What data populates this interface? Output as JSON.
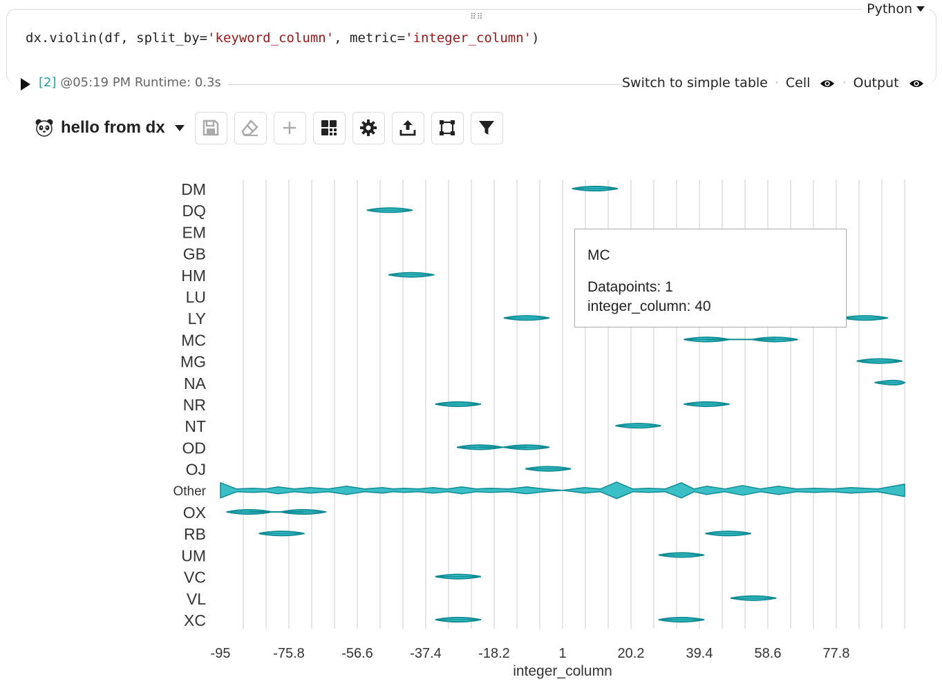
{
  "cell": {
    "language": "Python",
    "code_prefix": "dx.violin(df, split_by=",
    "code_arg1": "'keyword_column'",
    "code_mid": ", metric=",
    "code_arg2": "'integer_column'",
    "code_suffix": ")",
    "exec_count": "[2]",
    "exec_info": " @05:19 PM Runtime: 0.3s",
    "switch_label": "Switch to simple table",
    "cell_label": "Cell",
    "output_label": "Output"
  },
  "toolbar": {
    "title": "hello from dx",
    "buttons": [
      "save-icon",
      "eraser-icon",
      "plus-icon",
      "grid-icon",
      "gear-icon",
      "upload-icon",
      "select-icon",
      "filter-icon"
    ]
  },
  "tooltip": {
    "title": "MC",
    "line1": "Datapoints: 1",
    "line2": "integer_column: 40"
  },
  "colors": {
    "violin_fill": "#3bbfc7",
    "violin_stroke": "#0e8a93",
    "accent": "#1fa0a6"
  },
  "chart_data": {
    "type": "violin",
    "orientation": "horizontal",
    "xlabel": "integer_column",
    "xlim": [
      -95,
      95
    ],
    "xticks": [
      "-95",
      "-75.8",
      "-56.6",
      "-37.4",
      "-18.2",
      "1",
      "20.2",
      "39.4",
      "58.6",
      "77.8"
    ],
    "categories": [
      "DM",
      "DQ",
      "EM",
      "GB",
      "HM",
      "LU",
      "LY",
      "MC",
      "MG",
      "NA",
      "NR",
      "NT",
      "OD",
      "OJ",
      "Other",
      "OX",
      "RB",
      "UM",
      "VC",
      "VL",
      "XC"
    ],
    "series": [
      {
        "category": "DM",
        "values": [
          9
        ]
      },
      {
        "category": "DQ",
        "values": [
          -48
        ]
      },
      {
        "category": "EM",
        "values": []
      },
      {
        "category": "GB",
        "values": []
      },
      {
        "category": "HM",
        "values": [
          -42
        ]
      },
      {
        "category": "LU",
        "values": []
      },
      {
        "category": "LY",
        "values": [
          -10,
          84
        ]
      },
      {
        "category": "MC",
        "values": [
          40,
          59
        ]
      },
      {
        "category": "MG",
        "values": [
          88
        ]
      },
      {
        "category": "NA",
        "values": [
          93
        ]
      },
      {
        "category": "NR",
        "values": [
          -29,
          40
        ]
      },
      {
        "category": "NT",
        "values": [
          21
        ]
      },
      {
        "category": "OD",
        "values": [
          -23,
          -10
        ]
      },
      {
        "category": "OJ",
        "values": [
          -4
        ]
      },
      {
        "category": "Other",
        "values": [
          -95,
          -86,
          -79,
          -70,
          -60,
          -50,
          -44,
          -36,
          -28,
          -20,
          -10,
          0,
          6,
          15,
          24,
          33,
          40,
          50,
          60,
          70,
          80,
          95
        ]
      },
      {
        "category": "OX",
        "values": [
          -87,
          -72
        ]
      },
      {
        "category": "RB",
        "values": [
          -78,
          46
        ]
      },
      {
        "category": "UM",
        "values": [
          33
        ]
      },
      {
        "category": "VC",
        "values": [
          -29
        ]
      },
      {
        "category": "VL",
        "values": [
          53
        ]
      },
      {
        "category": "XC",
        "values": [
          -29,
          33
        ]
      }
    ]
  }
}
